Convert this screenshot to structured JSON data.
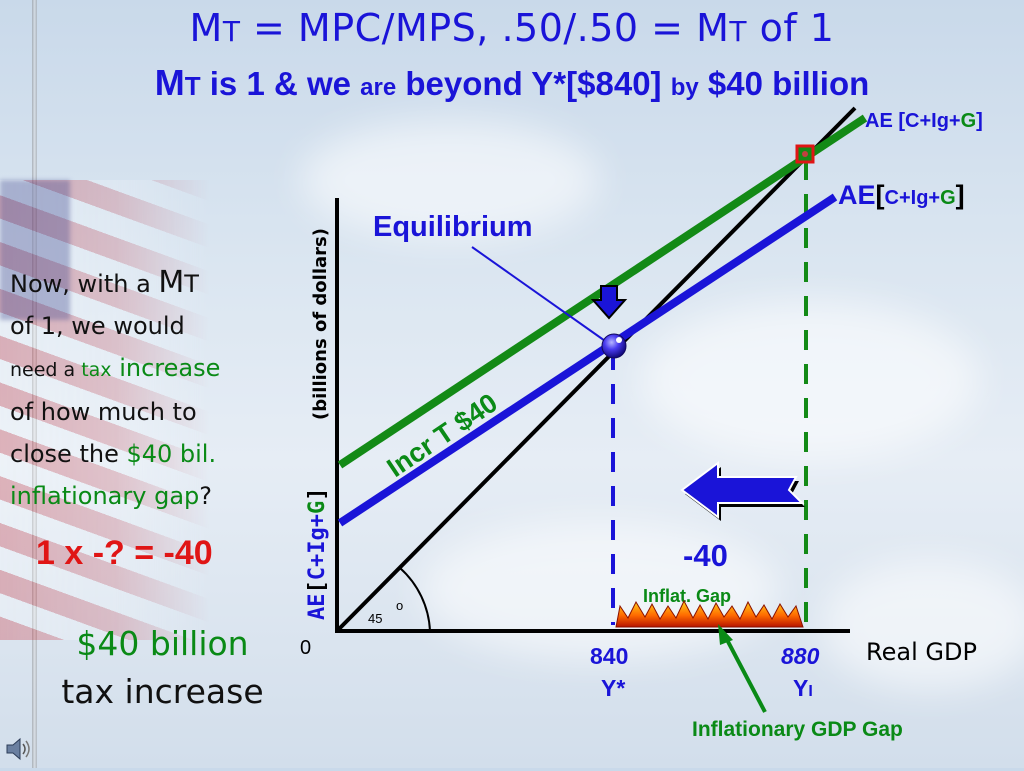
{
  "title": {
    "line1": {
      "m": "M",
      "t": "T",
      "rest": " = MPC/MPS, .50/.50 = ",
      "m2": "M",
      "t2": "T",
      "end": " of 1"
    },
    "line2": {
      "m": "M",
      "t": "T",
      "a": " is 1 & we ",
      "are": "are",
      "b": " beyond Y*[$840] ",
      "by": "by",
      "c": " $40 billion"
    }
  },
  "left_text": {
    "w1": "Now, with a ",
    "m": "M",
    "t": "T",
    "w2": "of ",
    "one": "1",
    "w3": ", we would",
    "w4": "need a ",
    "tax": "tax",
    "sp": " ",
    "increase": "increase",
    "w5": "of how much to",
    "w6": "close the ",
    "gap_amount": "$40 bil.",
    "w7": "inflationary gap",
    "q": "?"
  },
  "equation": "1 x -? = -40",
  "answer": {
    "line1": "$40 billion",
    "line2": "tax increase"
  },
  "chart": {
    "y_axis_label_b": "(billions of dollars)",
    "y_axis_ae": {
      "ae": "AE",
      "lb": "[",
      "c": "C+Ig+",
      "g": "G",
      "rb": "]"
    },
    "x_axis_label": "Real GDP",
    "origin": "0",
    "angle": "45",
    "angle_deg": "o",
    "equilibrium": "Equilibrium",
    "incr_t": "Incr T $40",
    "ae_top": {
      "ae": "AE ",
      "lb": "[",
      "c": "C+Ig+",
      "g": "G",
      "rb": "]"
    },
    "ae_blue": {
      "ae": "AE",
      "lb": "[",
      "c": "C+Ig+",
      "g": "G",
      "rb": "]"
    },
    "gap_value": "-40",
    "inflat_gap": "Inflat. Gap",
    "tick_840": "840",
    "tick_840_sub": "Y*",
    "tick_880": "880",
    "tick_880_sub": "Y",
    "tick_880_subscript": "I",
    "inflationary_gdp_gap": "Inflationary GDP Gap",
    "colors": {
      "green_line": "#138a16",
      "blue_line": "#1a14d8",
      "black_line": "#000000",
      "title": "#1a14d8",
      "red": "#e01515",
      "green_text": "#0a8a16"
    }
  },
  "icons": [
    "speaker-icon",
    "down-arrow-icon",
    "left-arrow-icon",
    "fire-icon",
    "equilibrium-point-icon"
  ]
}
